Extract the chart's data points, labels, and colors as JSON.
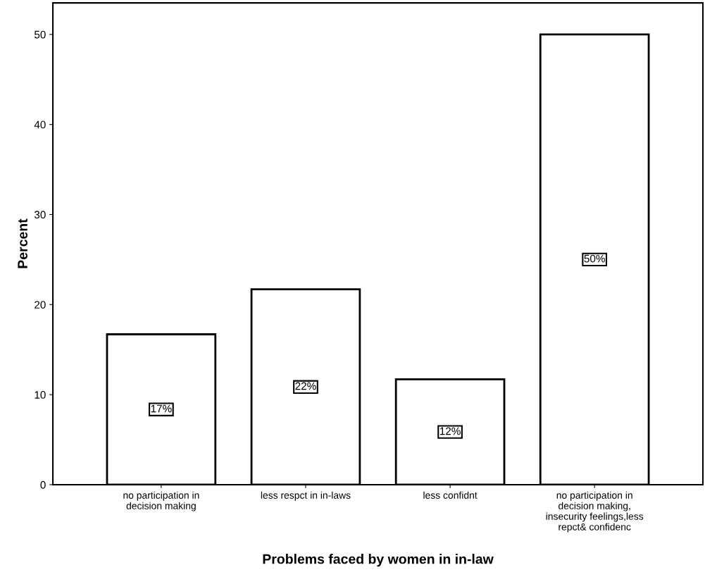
{
  "chart_data": {
    "type": "bar",
    "xlabel": "Problems faced by women in in-law",
    "ylabel": "Percent",
    "categories": [
      "no participation in\ndecision making",
      "less respct in in-laws",
      "less confidnt",
      "no participation in\ndecision making,\ninsecurity feelings,less\nrepct& confidenc"
    ],
    "values": [
      16.7,
      21.7,
      11.7,
      50.0
    ],
    "value_labels": [
      "17%",
      "22%",
      "12%",
      "50%"
    ],
    "color": "#ffffff",
    "ylim": [
      0,
      53.5
    ],
    "yticks": [
      0,
      10,
      20,
      30,
      40,
      50
    ],
    "grid": false,
    "legend": false
  }
}
